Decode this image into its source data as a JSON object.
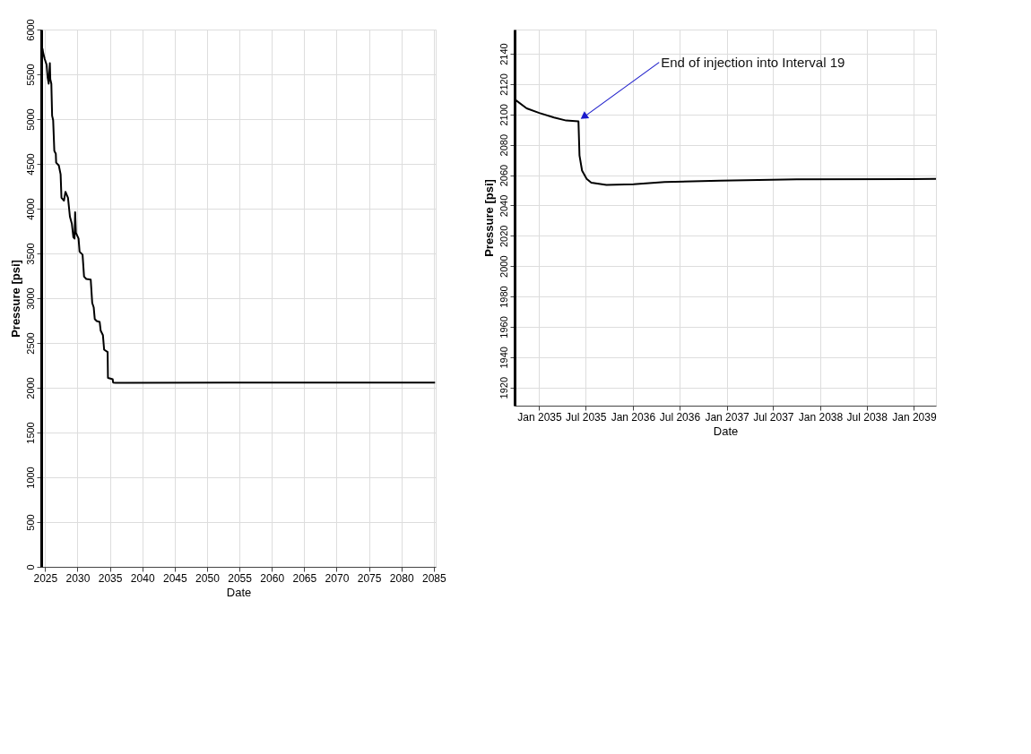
{
  "chart_data": [
    {
      "type": "line",
      "xlabel": "Date",
      "ylabel": "Pressure [psi]",
      "x": [
        2024.59,
        2024.7,
        2024.93,
        2025.23,
        2025.39,
        2025.55,
        2025.73,
        2025.8,
        2025.96,
        2026.08,
        2026.24,
        2026.42,
        2026.65,
        2026.7,
        2027.11,
        2027.39,
        2027.52,
        2027.91,
        2028.14,
        2028.53,
        2028.83,
        2029.13,
        2029.36,
        2029.54,
        2029.63,
        2029.75,
        2030.16,
        2030.32,
        2030.78,
        2031.01,
        2031.35,
        2032.04,
        2032.27,
        2032.5,
        2032.66,
        2032.96,
        2033.42,
        2033.58,
        2033.92,
        2034.11,
        2034.65,
        2034.7,
        2035.43,
        2035.5,
        2035.9,
        2037.4,
        2085.2
      ],
      "series": [
        {
          "color": "#000000",
          "values": [
            5788,
            5739,
            5673,
            5608,
            5461,
            5396,
            5624,
            5445,
            5396,
            5037,
            4988,
            4645,
            4612,
            4514,
            4482,
            4384,
            4122,
            4090,
            4188,
            4122,
            3910,
            3829,
            3682,
            3666,
            3959,
            3731,
            3666,
            3519,
            3486,
            3241,
            3215,
            3208,
            2947,
            2898,
            2768,
            2745,
            2735,
            2637,
            2588,
            2425,
            2399,
            2110,
            2095,
            2058,
            2054,
            2056,
            2058
          ]
        }
      ],
      "xlim": [
        2024.4,
        2085.3
      ],
      "ylim": [
        0,
        6000
      ],
      "xticks": [
        2025,
        2030,
        2035,
        2040,
        2045,
        2050,
        2055,
        2060,
        2065,
        2070,
        2075,
        2080,
        2085
      ],
      "yticks": [
        0,
        500,
        1000,
        1500,
        2000,
        2500,
        3000,
        3500,
        4000,
        4500,
        5000,
        5500,
        6000
      ],
      "grid": true,
      "line_style": "solid"
    },
    {
      "type": "line",
      "xlabel": "Date",
      "ylabel": "Pressure [psi]",
      "x": [
        "2034-09-27",
        "2034-11-13",
        "2035-01-01",
        "2035-02-28",
        "2035-04-16",
        "2035-06-03",
        "2035-06-07",
        "2035-06-17",
        "2035-07-05",
        "2035-07-23",
        "2035-09-20",
        "2036-01-04",
        "2036-05-04",
        "2036-12-06",
        "2037-10-01",
        "2039-03-28"
      ],
      "series": [
        {
          "color": "#000000",
          "values": [
            2110,
            2104,
            2101,
            2098,
            2096,
            2095.5,
            2073,
            2063,
            2057.5,
            2055,
            2053.6,
            2054,
            2055.4,
            2056.4,
            2057.2,
            2057.5
          ]
        }
      ],
      "xlim": [
        "2034-09-27",
        "2039-03-28"
      ],
      "ylim": [
        1908,
        2156
      ],
      "xticks": [
        {
          "value": "2035-01-01",
          "label": "Jan 2035"
        },
        {
          "value": "2035-07-01",
          "label": "Jul 2035"
        },
        {
          "value": "2036-01-01",
          "label": "Jan 2036"
        },
        {
          "value": "2036-07-01",
          "label": "Jul 2036"
        },
        {
          "value": "2037-01-01",
          "label": "Jan 2037"
        },
        {
          "value": "2037-07-01",
          "label": "Jul 2037"
        },
        {
          "value": "2038-01-01",
          "label": "Jan 2038"
        },
        {
          "value": "2038-07-01",
          "label": "Jul 2038"
        },
        {
          "value": "2039-01-01",
          "label": "Jan 2039"
        }
      ],
      "yticks": [
        1920,
        1940,
        1960,
        1980,
        2000,
        2020,
        2040,
        2060,
        2080,
        2100,
        2120,
        2140
      ],
      "annotations": [
        {
          "text": "End of injection into Interval 19",
          "x": "2035-06-03",
          "y": 2096
        }
      ],
      "grid": true,
      "line_style": "solid"
    }
  ]
}
